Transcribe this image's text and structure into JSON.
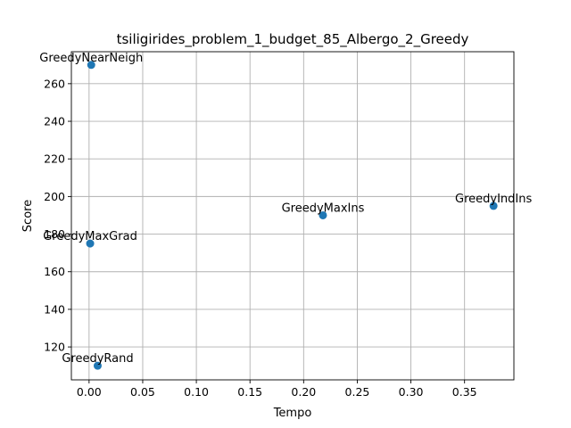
{
  "chart_data": {
    "type": "scatter",
    "title": "tsiligirides_problem_1_budget_85_Albergo_2_Greedy",
    "xlabel": "Tempo",
    "ylabel": "Score",
    "xlim": [
      -0.0165,
      0.396
    ],
    "ylim": [
      102.5,
      277
    ],
    "grid": true,
    "x_ticks": [
      "0.00",
      "0.05",
      "0.10",
      "0.15",
      "0.20",
      "0.25",
      "0.30",
      "0.35"
    ],
    "x_tick_values": [
      0,
      0.05,
      0.1,
      0.15,
      0.2,
      0.25,
      0.3,
      0.35
    ],
    "y_ticks": [
      "120",
      "140",
      "160",
      "180",
      "200",
      "220",
      "240",
      "260"
    ],
    "y_tick_values": [
      120,
      140,
      160,
      180,
      200,
      220,
      240,
      260
    ],
    "marker_color": "#1f77b4",
    "points": [
      {
        "label": "GreedyNearNeigh",
        "x": 0.002,
        "y": 270
      },
      {
        "label": "GreedyMaxGrad",
        "x": 0.001,
        "y": 175
      },
      {
        "label": "GreedyRand",
        "x": 0.008,
        "y": 110
      },
      {
        "label": "GreedyMaxIns",
        "x": 0.218,
        "y": 190
      },
      {
        "label": "GreedyIndIns",
        "x": 0.377,
        "y": 195
      }
    ]
  }
}
